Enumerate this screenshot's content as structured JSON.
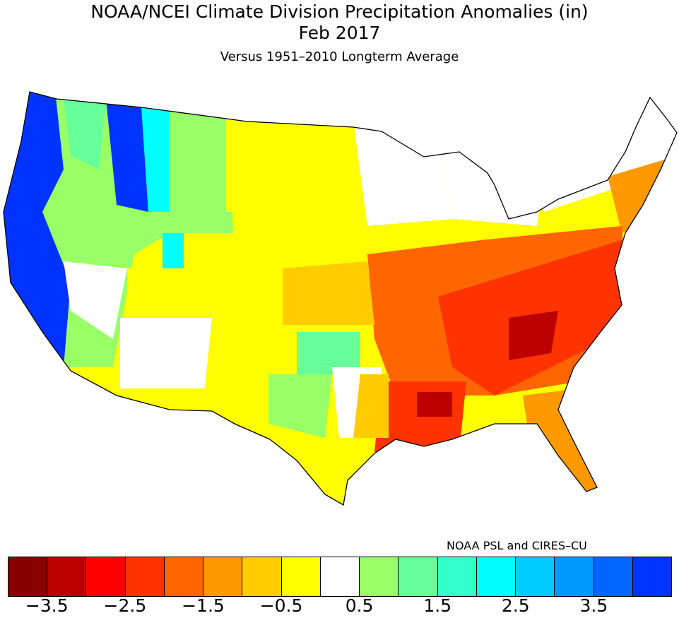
{
  "title": "NOAA/NCEI Climate Division Precipitation Anomalies (in)",
  "period": "Feb 2017",
  "subtitle": "Versus 1951–2010 Longterm Average",
  "credit": "NOAA PSL and CIRES–CU",
  "colorbar": {
    "units": "in",
    "colors": [
      "#880000",
      "#bb0000",
      "#ff0000",
      "#ff3300",
      "#ff6600",
      "#ff9900",
      "#ffcc00",
      "#ffff00",
      "#ffffff",
      "#99ff66",
      "#66ff99",
      "#33ffcc",
      "#00ffff",
      "#00ccff",
      "#0099ff",
      "#0066ff",
      "#0033ff"
    ],
    "tick_labels": [
      "−3.5",
      "−2.5",
      "−1.5",
      "−0.5",
      "0.5",
      "1.5",
      "2.5",
      "3.5"
    ]
  }
}
